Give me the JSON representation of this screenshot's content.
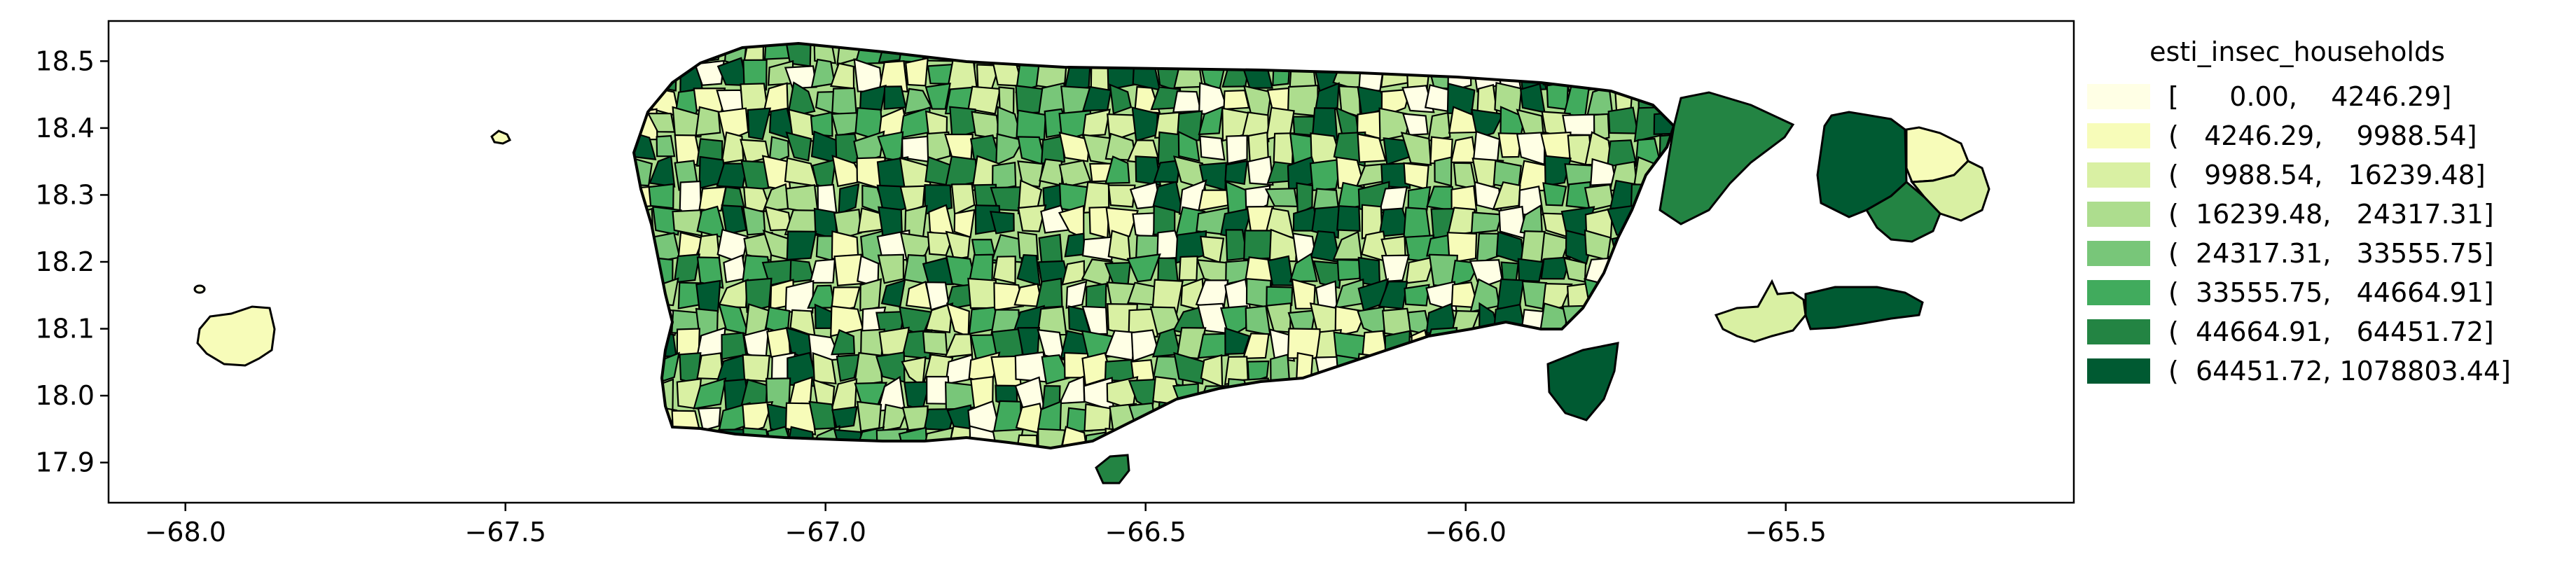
{
  "chart_data": {
    "type": "choropleth",
    "legend_title": "esti_insec_households",
    "legend_position": "right",
    "x_ticks": [
      "−68.0",
      "−67.5",
      "−67.0",
      "−66.5",
      "−66.0",
      "−65.5"
    ],
    "y_ticks": [
      "18.5",
      "18.4",
      "18.3",
      "18.2",
      "18.1",
      "18.0",
      "17.9"
    ],
    "x_tick_values": [
      -68.0,
      -67.5,
      -67.0,
      -66.5,
      -66.0,
      -65.5
    ],
    "y_tick_values": [
      18.5,
      18.4,
      18.3,
      18.2,
      18.1,
      18.0,
      17.9
    ],
    "xlim": [
      -68.12,
      -65.05
    ],
    "ylim": [
      17.84,
      18.56
    ],
    "colormap": "YlGn",
    "bins": [
      {
        "label": "[      0.00,    4246.29]",
        "color": "#ffffe5"
      },
      {
        "label": "(   4246.29,    9988.54]",
        "color": "#f7fcb9"
      },
      {
        "label": "(   9988.54,   16239.48]",
        "color": "#d9f0a3"
      },
      {
        "label": "(  16239.48,   24317.31]",
        "color": "#addd8e"
      },
      {
        "label": "(  24317.31,   33555.75]",
        "color": "#78c679"
      },
      {
        "label": "(  33555.75,   44664.91]",
        "color": "#41ab5d"
      },
      {
        "label": "(  44664.91,   64451.72]",
        "color": "#238443"
      },
      {
        "label": "(  64451.72, 1078803.44]",
        "color": "#005a32"
      }
    ]
  }
}
